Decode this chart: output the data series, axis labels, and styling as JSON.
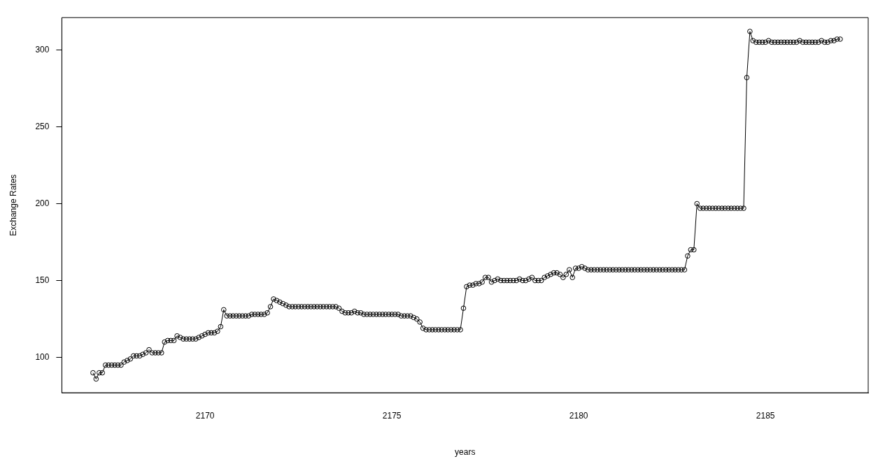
{
  "chart_data": {
    "type": "line",
    "xlabel": "years",
    "ylabel": "Exchange Rates",
    "x": [
      "2167-01",
      "2167-02",
      "2167-03",
      "2167-04",
      "2167-05",
      "2167-06",
      "2167-07",
      "2167-08",
      "2167-09",
      "2167-10",
      "2167-11",
      "2167-12",
      "2168-01",
      "2168-02",
      "2168-03",
      "2168-04",
      "2168-05",
      "2168-06",
      "2168-07",
      "2168-08",
      "2168-09",
      "2168-10",
      "2168-11",
      "2168-12",
      "2169-01",
      "2169-02",
      "2169-03",
      "2169-04",
      "2169-05",
      "2169-06",
      "2169-07",
      "2169-08",
      "2169-09",
      "2169-10",
      "2169-11",
      "2169-12",
      "2170-01",
      "2170-02",
      "2170-03",
      "2170-04",
      "2170-05",
      "2170-06",
      "2170-07",
      "2170-08",
      "2170-09",
      "2170-10",
      "2170-11",
      "2170-12",
      "2171-01",
      "2171-02",
      "2171-03",
      "2171-04",
      "2171-05",
      "2171-06",
      "2171-07",
      "2171-08",
      "2171-09",
      "2171-10",
      "2171-11",
      "2171-12",
      "2172-01",
      "2172-02",
      "2172-03",
      "2172-04",
      "2172-05",
      "2172-06",
      "2172-07",
      "2172-08",
      "2172-09",
      "2172-10",
      "2172-11",
      "2172-12",
      "2173-01",
      "2173-02",
      "2173-03",
      "2173-04",
      "2173-05",
      "2173-06",
      "2173-07",
      "2173-08",
      "2173-09",
      "2173-10",
      "2173-11",
      "2173-12",
      "2174-01",
      "2174-02",
      "2174-03",
      "2174-04",
      "2174-05",
      "2174-06",
      "2174-07",
      "2174-08",
      "2174-09",
      "2174-10",
      "2174-11",
      "2174-12",
      "2175-01",
      "2175-02",
      "2175-03",
      "2175-04",
      "2175-05",
      "2175-06",
      "2175-07",
      "2175-08",
      "2175-09",
      "2175-10",
      "2175-11",
      "2175-12",
      "2176-01",
      "2176-02",
      "2176-03",
      "2176-04",
      "2176-05",
      "2176-06",
      "2176-07",
      "2176-08",
      "2176-09",
      "2176-10",
      "2176-11",
      "2176-12",
      "2177-01",
      "2177-02",
      "2177-03",
      "2177-04",
      "2177-05",
      "2177-06",
      "2177-07",
      "2177-08",
      "2177-09",
      "2177-10",
      "2177-11",
      "2177-12",
      "2178-01",
      "2178-02",
      "2178-03",
      "2178-04",
      "2178-05",
      "2178-06",
      "2178-07",
      "2178-08",
      "2178-09",
      "2178-10",
      "2178-11",
      "2178-12",
      "2179-01",
      "2179-02",
      "2179-03",
      "2179-04",
      "2179-05",
      "2179-06",
      "2179-07",
      "2179-08",
      "2179-09",
      "2179-10",
      "2179-11",
      "2179-12",
      "2180-01",
      "2180-02",
      "2180-03",
      "2180-04",
      "2180-05",
      "2180-06",
      "2180-07",
      "2180-08",
      "2180-09",
      "2180-10",
      "2180-11",
      "2180-12",
      "2181-01",
      "2181-02",
      "2181-03",
      "2181-04",
      "2181-05",
      "2181-06",
      "2181-07",
      "2181-08",
      "2181-09",
      "2181-10",
      "2181-11",
      "2181-12",
      "2182-01",
      "2182-02",
      "2182-03",
      "2182-04",
      "2182-05",
      "2182-06",
      "2182-07",
      "2182-08",
      "2182-09",
      "2182-10",
      "2182-11",
      "2182-12",
      "2183-01",
      "2183-02",
      "2183-03",
      "2183-04",
      "2183-05",
      "2183-06",
      "2183-07",
      "2183-08",
      "2183-09",
      "2183-10",
      "2183-11",
      "2183-12",
      "2184-01",
      "2184-02",
      "2184-03",
      "2184-04",
      "2184-05",
      "2184-06",
      "2184-07",
      "2184-08",
      "2184-09",
      "2184-10",
      "2184-11",
      "2184-12",
      "2185-01",
      "2185-02",
      "2185-03",
      "2185-04",
      "2185-05",
      "2185-06",
      "2185-07",
      "2185-08",
      "2185-09",
      "2185-10",
      "2185-11",
      "2185-12",
      "2186-01",
      "2186-02",
      "2186-03",
      "2186-04",
      "2186-05",
      "2186-06",
      "2186-07",
      "2186-08",
      "2186-09",
      "2186-10",
      "2186-11",
      "2186-12",
      "2187-01"
    ],
    "series": [
      {
        "color": "#000000",
        "values": [
          90,
          86,
          90,
          90,
          95,
          95,
          95,
          95,
          95,
          95,
          97,
          98,
          99,
          101,
          101,
          101,
          102,
          103,
          105,
          103,
          103,
          103,
          103,
          110,
          111,
          111,
          111,
          114,
          113,
          112,
          112,
          112,
          112,
          112,
          113,
          114,
          115,
          116,
          116,
          116,
          117,
          120,
          131,
          127,
          127,
          127,
          127,
          127,
          127,
          127,
          127,
          128,
          128,
          128,
          128,
          128,
          129,
          133,
          138,
          137,
          136,
          135,
          134,
          133,
          133,
          133,
          133,
          133,
          133,
          133,
          133,
          133,
          133,
          133,
          133,
          133,
          133,
          133,
          133,
          132,
          130,
          129,
          129,
          129,
          130,
          129,
          129,
          128,
          128,
          128,
          128,
          128,
          128,
          128,
          128,
          128,
          128,
          128,
          128,
          127,
          127,
          127,
          127,
          126,
          125,
          123,
          119,
          118,
          118,
          118,
          118,
          118,
          118,
          118,
          118,
          118,
          118,
          118,
          118,
          132,
          146,
          147,
          147,
          148,
          148,
          149,
          152,
          152,
          149,
          150,
          151,
          150,
          150,
          150,
          150,
          150,
          150,
          151,
          150,
          150,
          151,
          152,
          150,
          150,
          150,
          152,
          153,
          154,
          155,
          155,
          154,
          152,
          154,
          157,
          152,
          158,
          158,
          159,
          158,
          157,
          157,
          157,
          157,
          157,
          157,
          157,
          157,
          157,
          157,
          157,
          157,
          157,
          157,
          157,
          157,
          157,
          157,
          157,
          157,
          157,
          157,
          157,
          157,
          157,
          157,
          157,
          157,
          157,
          157,
          157,
          157,
          166,
          170,
          170,
          200,
          197,
          197,
          197,
          197,
          197,
          197,
          197,
          197,
          197,
          197,
          197,
          197,
          197,
          197,
          197,
          282,
          312,
          306,
          305,
          305,
          305,
          305,
          306,
          305,
          305,
          305,
          305,
          305,
          305,
          305,
          305,
          305,
          306,
          305,
          305,
          305,
          305,
          305,
          305,
          306,
          305,
          305,
          306,
          306,
          307,
          307
        ]
      }
    ],
    "xlim": [
      "2166-03",
      "2187-10"
    ],
    "xticks": [
      "2170",
      "2175",
      "2180",
      "2185"
    ],
    "ylim": [
      77,
      321
    ],
    "yticks": [
      100,
      150,
      200,
      250,
      300
    ],
    "grid": false,
    "legend": false,
    "marker": "circle",
    "line_style": "solid"
  }
}
